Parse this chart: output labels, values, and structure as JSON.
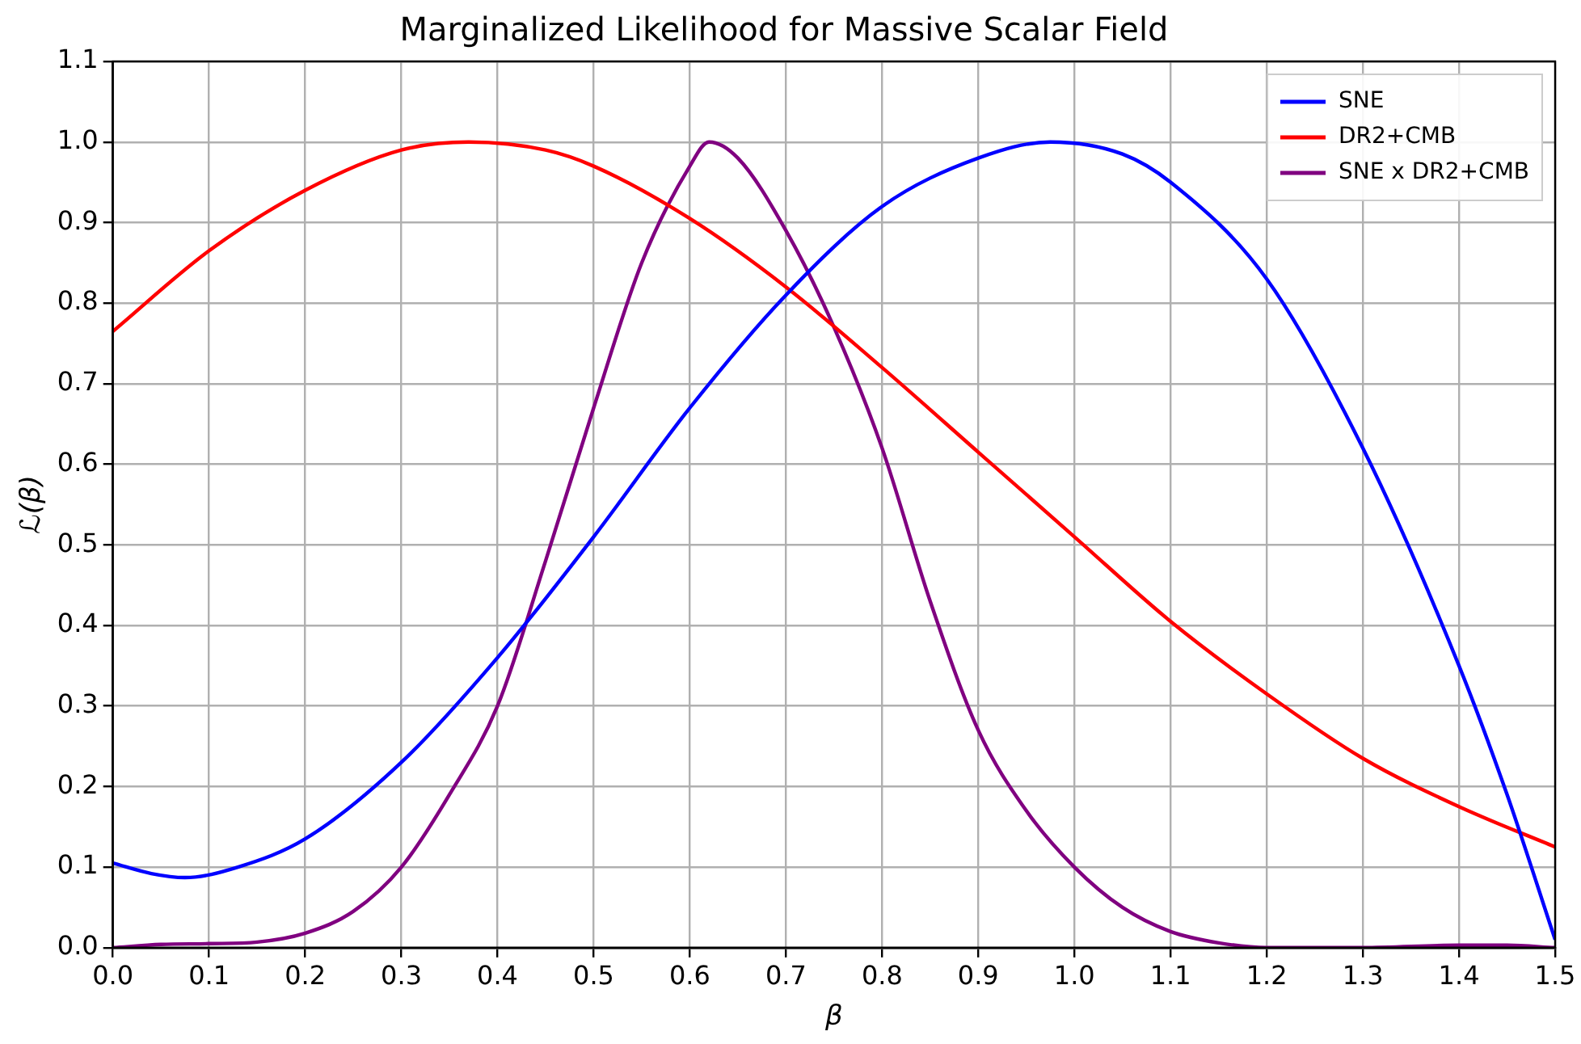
{
  "chart_data": {
    "type": "line",
    "title": "Marginalized Likelihood for Massive Scalar Field",
    "xlabel": "β",
    "ylabel": "ℒ(β)",
    "xlim": [
      0,
      1.5
    ],
    "ylim": [
      0,
      1.1
    ],
    "xticks": [
      {
        "value": 0,
        "label": "0.0"
      },
      0.1,
      0.2,
      0.3,
      0.4,
      0.5,
      0.6,
      0.7,
      0.8,
      0.9,
      {
        "value": 1,
        "label": "1.0"
      },
      1.1,
      1.2,
      1.3,
      1.4,
      1.5
    ],
    "yticks": [
      {
        "value": 0,
        "label": "0.0"
      },
      0.1,
      0.2,
      0.3,
      0.4,
      0.5,
      0.6,
      0.7,
      0.8,
      0.9,
      {
        "value": 1,
        "label": "1.0"
      },
      1.1
    ],
    "grid": true,
    "legend": "top right",
    "marker": "none",
    "line_style": "solid",
    "series": [
      {
        "name": "SNE",
        "color": "#0000ff",
        "x": [
          0,
          0.04,
          0.075,
          0.13,
          0.2,
          0.3,
          0.4,
          0.5,
          0.6,
          0.7,
          0.8,
          0.9,
          0.975,
          1.05,
          1.1,
          1.2,
          1.3,
          1.4,
          1.45,
          1.5
        ],
        "values": [
          0.105,
          0.092,
          0.087,
          0.1,
          0.135,
          0.23,
          0.36,
          0.51,
          0.67,
          0.81,
          0.92,
          0.98,
          1.0,
          0.985,
          0.95,
          0.83,
          0.62,
          0.35,
          0.19,
          0.01
        ]
      },
      {
        "name": "DR2+CMB",
        "color": "#ff0000",
        "x": [
          0,
          0.1,
          0.2,
          0.3,
          0.37,
          0.45,
          0.5,
          0.6,
          0.7,
          0.8,
          0.9,
          1.0,
          1.1,
          1.2,
          1.3,
          1.4,
          1.5
        ],
        "values": [
          0.765,
          0.865,
          0.94,
          0.99,
          1.0,
          0.99,
          0.97,
          0.905,
          0.82,
          0.72,
          0.615,
          0.51,
          0.405,
          0.315,
          0.235,
          0.175,
          0.125
        ]
      },
      {
        "name": "SNE x DR2+CMB",
        "color": "#800080",
        "x": [
          0,
          0.05,
          0.1,
          0.15,
          0.2,
          0.25,
          0.3,
          0.35,
          0.4,
          0.45,
          0.5,
          0.55,
          0.6,
          0.62,
          0.65,
          0.7,
          0.75,
          0.8,
          0.85,
          0.9,
          0.95,
          1.0,
          1.05,
          1.1,
          1.15,
          1.2,
          1.3,
          1.4,
          1.45,
          1.5
        ],
        "values": [
          0,
          0.004,
          0.005,
          0.007,
          0.018,
          0.045,
          0.1,
          0.19,
          0.3,
          0.48,
          0.67,
          0.85,
          0.97,
          1.0,
          0.98,
          0.89,
          0.77,
          0.62,
          0.43,
          0.27,
          0.17,
          0.1,
          0.05,
          0.02,
          0.006,
          0,
          0,
          0.003,
          0.003,
          0
        ]
      }
    ]
  }
}
